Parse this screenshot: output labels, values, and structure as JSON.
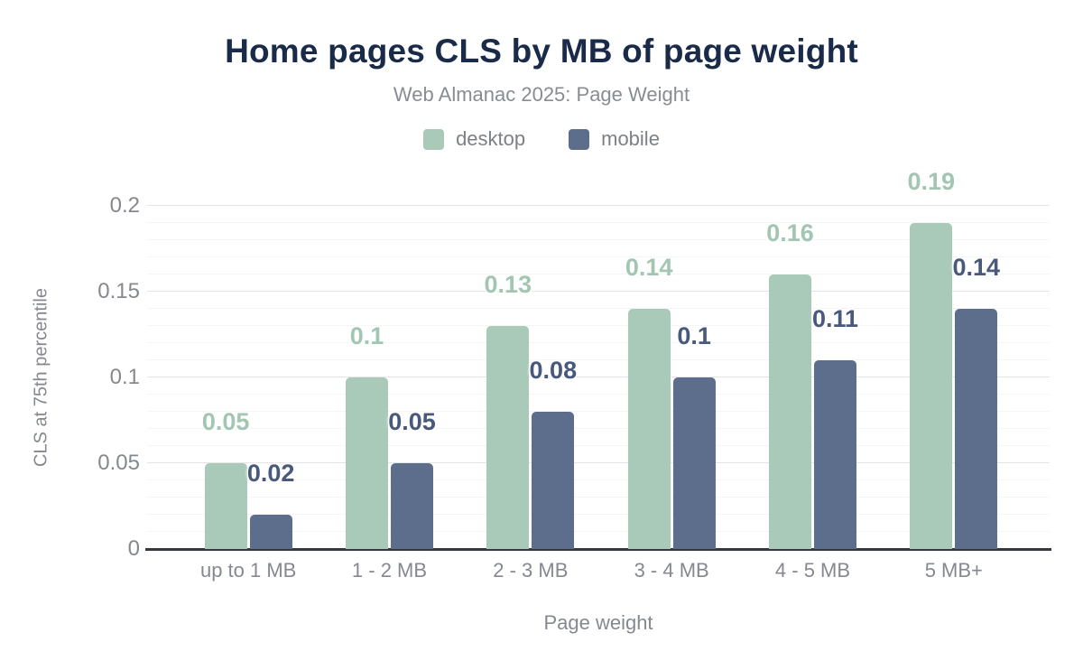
{
  "header": {
    "title": "Home pages CLS by MB of page weight",
    "subtitle": "Web Almanac 2025: Page Weight"
  },
  "chart_data": {
    "type": "bar",
    "title": "Home pages CLS by MB of page weight",
    "subtitle": "Web Almanac 2025: Page Weight",
    "categories": [
      "up to 1 MB",
      "1 - 2 MB",
      "2 - 3 MB",
      "3 - 4 MB",
      "4 - 5 MB",
      "5 MB+"
    ],
    "series": [
      {
        "name": "desktop",
        "color": "#a9cab8",
        "label_color": "#a2c6b1",
        "values": [
          0.05,
          0.1,
          0.13,
          0.14,
          0.16,
          0.19
        ]
      },
      {
        "name": "mobile",
        "color": "#5c6e8c",
        "label_color": "#48597b",
        "values": [
          0.02,
          0.05,
          0.08,
          0.1,
          0.11,
          0.14
        ]
      }
    ],
    "xlabel": "Page weight",
    "ylabel": "CLS at 75th percentile",
    "ylim": [
      0,
      0.2
    ],
    "yticks": [
      {
        "value": 0,
        "label": "0"
      },
      {
        "value": 0.05,
        "label": "0.05"
      },
      {
        "value": 0.1,
        "label": "0.1"
      },
      {
        "value": 0.15,
        "label": "0.15"
      },
      {
        "value": 0.2,
        "label": "0.2"
      }
    ],
    "grid": {
      "on": true,
      "minor_step": 0.01,
      "major_step": 0.05
    },
    "legend_position": "top"
  },
  "colors": {
    "title": "#1a2b49",
    "subtitle": "#878d93",
    "axis_labels": "#85898f",
    "legend_text": "#7b8187",
    "axis_line": "#35383d",
    "grid_major": "#e4e4e6",
    "grid_minor": "#f5f5f6",
    "background": "#ffffff"
  }
}
